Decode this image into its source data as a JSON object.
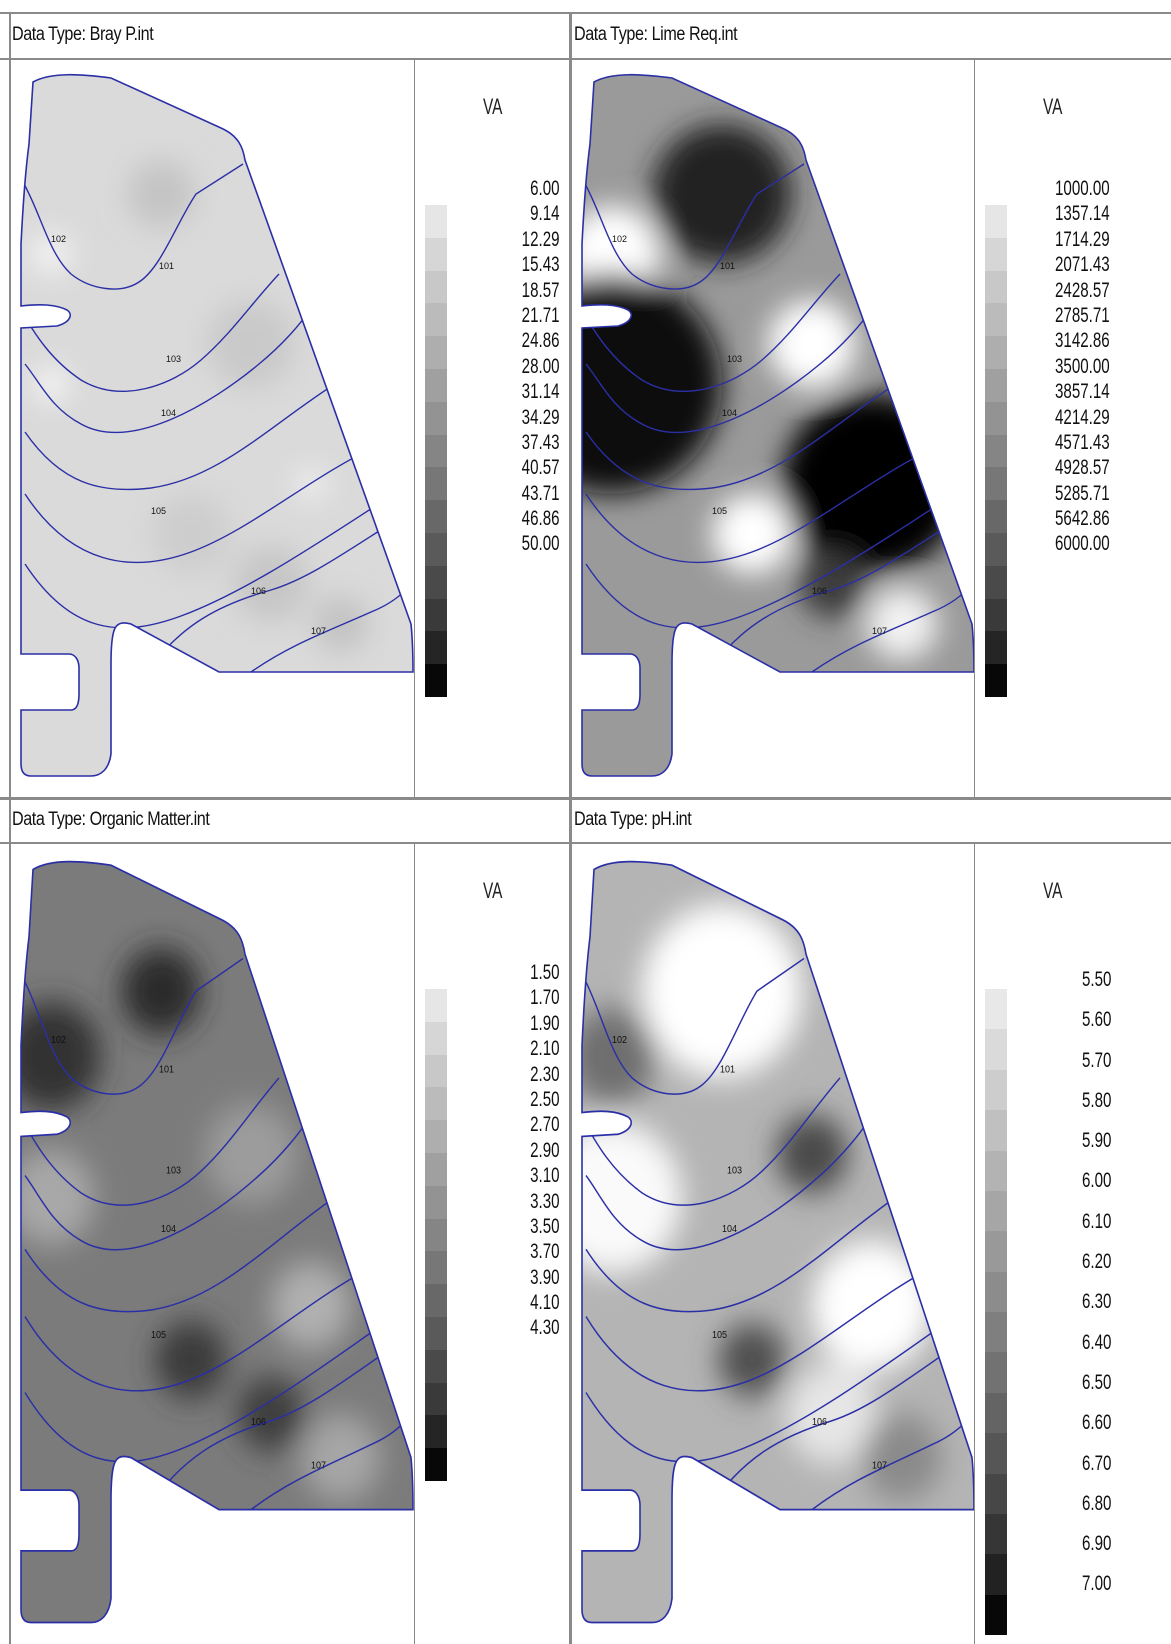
{
  "panels": [
    {
      "id": "bray",
      "title": "Data Type: Bray P.int",
      "legend_head": "VA",
      "legend_labels": [
        "6.00",
        "9.14",
        "12.29",
        "15.43",
        "18.57",
        "21.71",
        "24.86",
        "28.00",
        "31.14",
        "34.29",
        "37.43",
        "40.57",
        "43.71",
        "46.86",
        "50.00"
      ],
      "legend_colors": [
        "#e6e6e6",
        "#d6d6d6",
        "#c8c8c8",
        "#bbbbbb",
        "#aeaeae",
        "#a0a0a0",
        "#939393",
        "#858585",
        "#777777",
        "#686868",
        "#5a5a5a",
        "#4a4a4a",
        "#3a3a3a",
        "#252525",
        "#080808"
      ],
      "field_base": "#dadada",
      "blobs": [
        {
          "c": "#f4f4f4",
          "r": 20
        },
        {
          "c": "#c4c4c4",
          "r": 34
        },
        {
          "c": "#fafafa",
          "r": 16
        },
        {
          "c": "#c9c9c9",
          "r": 44
        },
        {
          "c": "#cdcdcd",
          "r": 40
        },
        {
          "c": "#f6f6f6",
          "r": 14
        },
        {
          "c": "#c6c6c6",
          "r": 38
        },
        {
          "c": "#c2c2c2",
          "r": 28
        }
      ],
      "zone_labels": [
        "102",
        "101",
        "103",
        "104",
        "105",
        "106",
        "107"
      ]
    },
    {
      "id": "lime",
      "title": "Data Type: Lime Req.int",
      "legend_head": "VA",
      "legend_labels": [
        "1000.00",
        "1357.14",
        "1714.29",
        "2071.43",
        "2428.57",
        "2785.71",
        "3142.86",
        "3500.00",
        "3857.14",
        "4214.29",
        "4571.43",
        "4928.57",
        "5285.71",
        "5642.86",
        "6000.00"
      ],
      "legend_colors": [
        "#e6e6e6",
        "#d6d6d6",
        "#c8c8c8",
        "#bbbbbb",
        "#aeaeae",
        "#a0a0a0",
        "#939393",
        "#858585",
        "#777777",
        "#686868",
        "#5a5a5a",
        "#4a4a4a",
        "#3a3a3a",
        "#252525",
        "#080808"
      ],
      "field_base": "#9a9a9a",
      "blobs": [
        {
          "c": "#ffffff",
          "r": 48
        },
        {
          "c": "#202020",
          "r": 70
        },
        {
          "c": "#0a0a0a",
          "r": 110
        },
        {
          "c": "#ffffff",
          "r": 44
        },
        {
          "c": "#ffffff",
          "r": 40
        },
        {
          "c": "#050505",
          "r": 90
        },
        {
          "c": "#3a3a3a",
          "r": 34
        },
        {
          "c": "#f2f2f2",
          "r": 36
        }
      ],
      "zone_labels": [
        "102",
        "101",
        "103",
        "104",
        "105",
        "106",
        "107"
      ]
    },
    {
      "id": "om",
      "title": "Data Type: Organic Matter.int",
      "legend_head": "VA",
      "legend_labels": [
        "1.50",
        "1.70",
        "1.90",
        "2.10",
        "2.30",
        "2.50",
        "2.70",
        "2.90",
        "3.10",
        "3.30",
        "3.50",
        "3.70",
        "3.90",
        "4.10",
        "4.30"
      ],
      "legend_colors": [
        "#e6e6e6",
        "#d6d6d6",
        "#c8c8c8",
        "#bbbbbb",
        "#aeaeae",
        "#a0a0a0",
        "#939393",
        "#858585",
        "#777777",
        "#686868",
        "#5a5a5a",
        "#4a4a4a",
        "#3a3a3a",
        "#252525",
        "#080808"
      ],
      "field_base": "#7b7b7b",
      "blobs": [
        {
          "c": "#333333",
          "r": 50
        },
        {
          "c": "#2a2a2a",
          "r": 40
        },
        {
          "c": "#a8a8a8",
          "r": 44
        },
        {
          "c": "#9c9c9c",
          "r": 46
        },
        {
          "c": "#3a3a3a",
          "r": 36
        },
        {
          "c": "#b0b0b0",
          "r": 40
        },
        {
          "c": "#3c3c3c",
          "r": 34
        },
        {
          "c": "#a6a6a6",
          "r": 40
        }
      ],
      "zone_labels": [
        "102",
        "101",
        "103",
        "104",
        "105",
        "106",
        "107"
      ]
    },
    {
      "id": "ph",
      "title": "Data Type: pH.int",
      "legend_head": "VA",
      "legend_labels": [
        "5.50",
        "5.60",
        "5.70",
        "5.80",
        "5.90",
        "6.00",
        "6.10",
        "6.20",
        "6.30",
        "6.40",
        "6.50",
        "6.60",
        "6.70",
        "6.80",
        "6.90",
        "7.00"
      ],
      "legend_colors": [
        "#e8e8e8",
        "#dadada",
        "#cdcdcd",
        "#c0c0c0",
        "#b3b3b3",
        "#a6a6a6",
        "#999999",
        "#8c8c8c",
        "#7f7f7f",
        "#727272",
        "#646464",
        "#565656",
        "#474747",
        "#363636",
        "#222222",
        "#080808"
      ],
      "field_base": "#b4b4b4",
      "blobs": [
        {
          "c": "#6e6e6e",
          "r": 44
        },
        {
          "c": "#ffffff",
          "r": 80
        },
        {
          "c": "#fafafa",
          "r": 70
        },
        {
          "c": "#4a4a4a",
          "r": 36
        },
        {
          "c": "#505050",
          "r": 34
        },
        {
          "c": "#ffffff",
          "r": 60
        },
        {
          "c": "#e6e6e6",
          "r": 46
        },
        {
          "c": "#8a8a8a",
          "r": 40
        }
      ],
      "zone_labels": [
        "102",
        "101",
        "103",
        "104",
        "105",
        "106",
        "107"
      ]
    }
  ],
  "colors": {
    "boundary": "#2b2fa6",
    "grid": "#8a8a8a"
  }
}
